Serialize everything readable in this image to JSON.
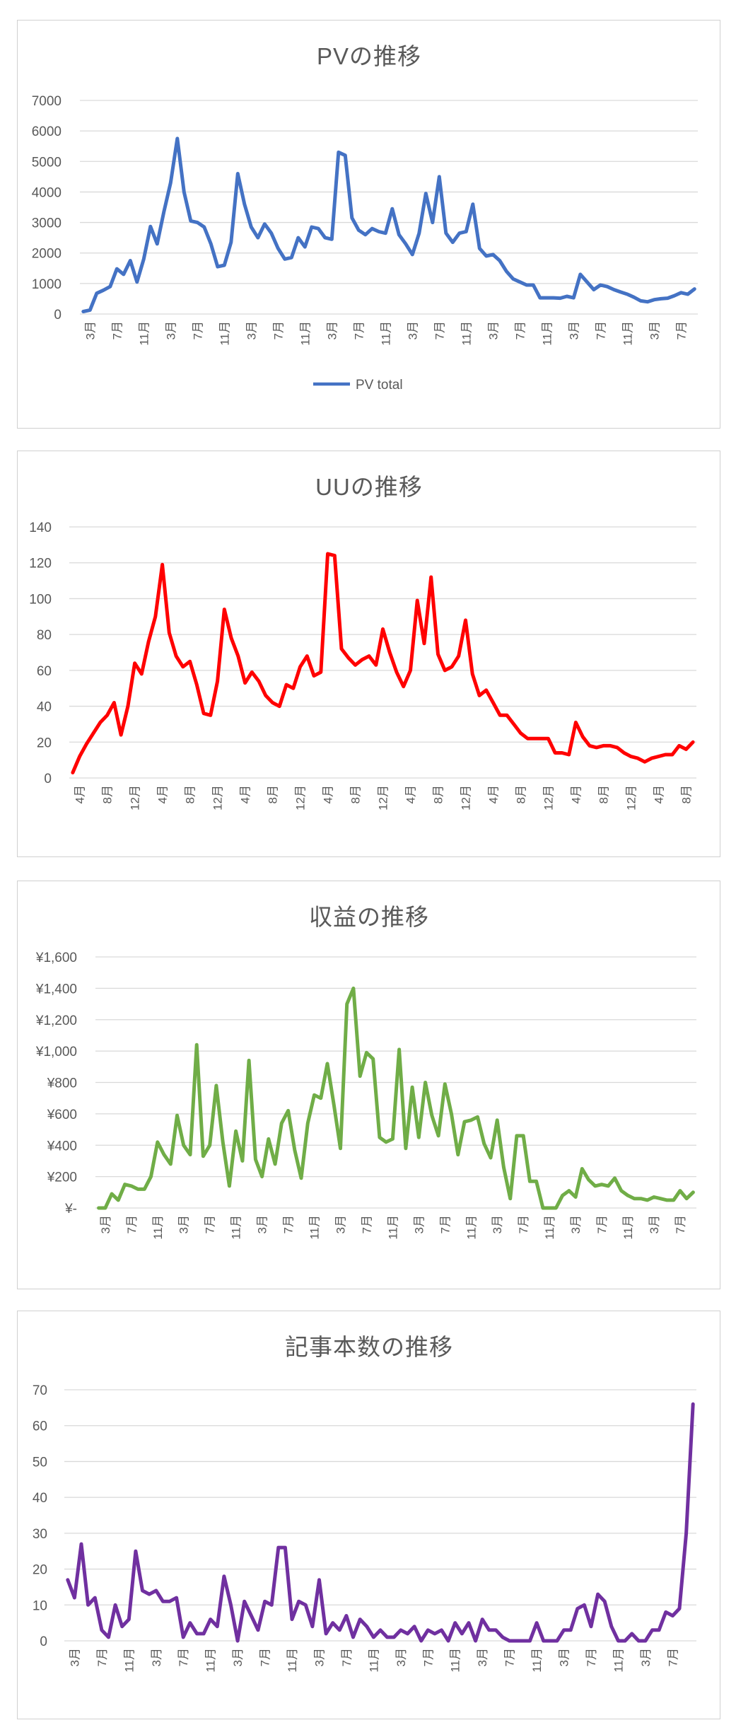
{
  "chart_data": [
    {
      "type": "line",
      "title": "PVの推移",
      "xlabel": "",
      "ylabel": "",
      "ylim": [
        0,
        7000
      ],
      "yticks": [
        "0",
        "1000",
        "2000",
        "3000",
        "4000",
        "5000",
        "6000",
        "7000"
      ],
      "legend": {
        "position": "bottom",
        "label": "PV total"
      },
      "color": "#4472C4",
      "xticks": [
        {
          "i": 1,
          "label": "3月"
        },
        {
          "i": 5,
          "label": "7月"
        },
        {
          "i": 9,
          "label": "11月"
        },
        {
          "i": 13,
          "label": "3月"
        },
        {
          "i": 17,
          "label": "7月"
        },
        {
          "i": 21,
          "label": "11月"
        },
        {
          "i": 25,
          "label": "3月"
        },
        {
          "i": 29,
          "label": "7月"
        },
        {
          "i": 33,
          "label": "11月"
        },
        {
          "i": 37,
          "label": "3月"
        },
        {
          "i": 41,
          "label": "7月"
        },
        {
          "i": 45,
          "label": "11月"
        },
        {
          "i": 49,
          "label": "3月"
        },
        {
          "i": 53,
          "label": "7月"
        },
        {
          "i": 57,
          "label": "11月"
        },
        {
          "i": 61,
          "label": "3月"
        },
        {
          "i": 65,
          "label": "7月"
        },
        {
          "i": 69,
          "label": "11月"
        },
        {
          "i": 73,
          "label": "3月"
        },
        {
          "i": 77,
          "label": "7月"
        },
        {
          "i": 81,
          "label": "11月"
        },
        {
          "i": 85,
          "label": "3月"
        },
        {
          "i": 89,
          "label": "7月"
        }
      ],
      "values": [
        80,
        130,
        680,
        780,
        900,
        1480,
        1300,
        1750,
        1050,
        1800,
        2870,
        2300,
        3350,
        4300,
        5750,
        4000,
        3050,
        3000,
        2850,
        2300,
        1550,
        1600,
        2350,
        4600,
        3600,
        2850,
        2500,
        2950,
        2650,
        2150,
        1800,
        1850,
        2500,
        2200,
        2850,
        2800,
        2500,
        2450,
        5300,
        5200,
        3150,
        2750,
        2600,
        2800,
        2700,
        2650,
        3450,
        2600,
        2300,
        1950,
        2650,
        3950,
        3000,
        4500,
        2650,
        2350,
        2650,
        2700,
        3600,
        2150,
        1900,
        1950,
        1750,
        1400,
        1150,
        1050,
        950,
        950,
        530,
        530,
        530,
        520,
        580,
        530,
        1300,
        1050,
        800,
        950,
        900,
        800,
        720,
        650,
        550,
        430,
        400,
        470,
        500,
        520,
        600,
        700,
        650,
        820
      ]
    },
    {
      "type": "line",
      "title": "UUの推移",
      "xlabel": "",
      "ylabel": "",
      "ylim": [
        0,
        140
      ],
      "yticks": [
        "0",
        "20",
        "40",
        "60",
        "80",
        "100",
        "120",
        "140"
      ],
      "color": "#FF0000",
      "xticks": [
        {
          "i": 1,
          "label": "4月"
        },
        {
          "i": 5,
          "label": "8月"
        },
        {
          "i": 9,
          "label": "12月"
        },
        {
          "i": 13,
          "label": "4月"
        },
        {
          "i": 17,
          "label": "8月"
        },
        {
          "i": 21,
          "label": "12月"
        },
        {
          "i": 25,
          "label": "4月"
        },
        {
          "i": 29,
          "label": "8月"
        },
        {
          "i": 33,
          "label": "12月"
        },
        {
          "i": 37,
          "label": "4月"
        },
        {
          "i": 41,
          "label": "8月"
        },
        {
          "i": 45,
          "label": "12月"
        },
        {
          "i": 49,
          "label": "4月"
        },
        {
          "i": 53,
          "label": "8月"
        },
        {
          "i": 57,
          "label": "12月"
        },
        {
          "i": 61,
          "label": "4月"
        },
        {
          "i": 65,
          "label": "8月"
        },
        {
          "i": 69,
          "label": "12月"
        },
        {
          "i": 73,
          "label": "4月"
        },
        {
          "i": 77,
          "label": "8月"
        },
        {
          "i": 81,
          "label": "12月"
        },
        {
          "i": 85,
          "label": "4月"
        },
        {
          "i": 89,
          "label": "8月"
        }
      ],
      "values": [
        3,
        12,
        19,
        25,
        31,
        35,
        42,
        24,
        40,
        64,
        58,
        76,
        90,
        119,
        81,
        68,
        62,
        65,
        52,
        36,
        35,
        54,
        94,
        78,
        68,
        53,
        59,
        54,
        46,
        42,
        40,
        52,
        50,
        62,
        68,
        57,
        59,
        125,
        124,
        72,
        67,
        63,
        66,
        68,
        63,
        83,
        70,
        59,
        51,
        60,
        99,
        75,
        112,
        69,
        60,
        62,
        68,
        88,
        58,
        46,
        49,
        42,
        35,
        35,
        30,
        25,
        22,
        22,
        22,
        22,
        14,
        14,
        13,
        31,
        23,
        18,
        17,
        18,
        18,
        17,
        14,
        12,
        11,
        9,
        11,
        12,
        13,
        13,
        18,
        16,
        20
      ]
    },
    {
      "type": "line",
      "title": "収益の推移",
      "xlabel": "",
      "ylabel": "",
      "ylim": [
        0,
        1600
      ],
      "yticks": [
        "¥-",
        "¥200",
        "¥400",
        "¥600",
        "¥800",
        "¥1,000",
        "¥1,200",
        "¥1,400",
        "¥1,600"
      ],
      "color": "#70AD47",
      "xticks": [
        {
          "i": 1,
          "label": "3月"
        },
        {
          "i": 5,
          "label": "7月"
        },
        {
          "i": 9,
          "label": "11月"
        },
        {
          "i": 13,
          "label": "3月"
        },
        {
          "i": 17,
          "label": "7月"
        },
        {
          "i": 21,
          "label": "11月"
        },
        {
          "i": 25,
          "label": "3月"
        },
        {
          "i": 29,
          "label": "7月"
        },
        {
          "i": 33,
          "label": "11月"
        },
        {
          "i": 37,
          "label": "3月"
        },
        {
          "i": 41,
          "label": "7月"
        },
        {
          "i": 45,
          "label": "11月"
        },
        {
          "i": 49,
          "label": "3月"
        },
        {
          "i": 53,
          "label": "7月"
        },
        {
          "i": 57,
          "label": "11月"
        },
        {
          "i": 61,
          "label": "3月"
        },
        {
          "i": 65,
          "label": "7月"
        },
        {
          "i": 69,
          "label": "11月"
        },
        {
          "i": 73,
          "label": "3月"
        },
        {
          "i": 77,
          "label": "7月"
        },
        {
          "i": 81,
          "label": "11月"
        },
        {
          "i": 85,
          "label": "3月"
        },
        {
          "i": 89,
          "label": "7月"
        }
      ],
      "values": [
        0,
        0,
        90,
        50,
        150,
        140,
        120,
        120,
        200,
        420,
        340,
        280,
        590,
        400,
        340,
        1040,
        330,
        400,
        780,
        420,
        140,
        490,
        300,
        940,
        310,
        200,
        440,
        280,
        540,
        620,
        370,
        190,
        540,
        720,
        700,
        920,
        660,
        380,
        1300,
        1400,
        840,
        990,
        950,
        450,
        420,
        440,
        1010,
        380,
        770,
        450,
        800,
        590,
        460,
        790,
        600,
        340,
        550,
        560,
        580,
        410,
        320,
        560,
        260,
        60,
        460,
        460,
        170,
        170,
        0,
        0,
        0,
        80,
        110,
        70,
        250,
        180,
        140,
        150,
        140,
        190,
        110,
        80,
        60,
        60,
        50,
        70,
        60,
        50,
        50,
        110,
        60,
        100
      ]
    },
    {
      "type": "line",
      "title": "記事本数の推移",
      "xlabel": "",
      "ylabel": "",
      "ylim": [
        0,
        70
      ],
      "yticks": [
        "0",
        "10",
        "20",
        "30",
        "40",
        "50",
        "60",
        "70"
      ],
      "color": "#7030A0",
      "xticks": [
        {
          "i": 1,
          "label": "3月"
        },
        {
          "i": 5,
          "label": "7月"
        },
        {
          "i": 9,
          "label": "11月"
        },
        {
          "i": 13,
          "label": "3月"
        },
        {
          "i": 17,
          "label": "7月"
        },
        {
          "i": 21,
          "label": "11月"
        },
        {
          "i": 25,
          "label": "3月"
        },
        {
          "i": 29,
          "label": "7月"
        },
        {
          "i": 33,
          "label": "11月"
        },
        {
          "i": 37,
          "label": "3月"
        },
        {
          "i": 41,
          "label": "7月"
        },
        {
          "i": 45,
          "label": "11月"
        },
        {
          "i": 49,
          "label": "3月"
        },
        {
          "i": 53,
          "label": "7月"
        },
        {
          "i": 57,
          "label": "11月"
        },
        {
          "i": 61,
          "label": "3月"
        },
        {
          "i": 65,
          "label": "7月"
        },
        {
          "i": 69,
          "label": "11月"
        },
        {
          "i": 73,
          "label": "3月"
        },
        {
          "i": 77,
          "label": "7月"
        },
        {
          "i": 81,
          "label": "11月"
        },
        {
          "i": 85,
          "label": "3月"
        },
        {
          "i": 89,
          "label": "7月"
        }
      ],
      "values": [
        17,
        12,
        27,
        10,
        12,
        3,
        1,
        10,
        4,
        6,
        25,
        14,
        13,
        14,
        11,
        11,
        12,
        1,
        5,
        2,
        2,
        6,
        4,
        18,
        10,
        0,
        11,
        7,
        3,
        11,
        10,
        26,
        26,
        6,
        11,
        10,
        4,
        17,
        2,
        5,
        3,
        7,
        1,
        6,
        4,
        1,
        3,
        1,
        1,
        3,
        2,
        4,
        0,
        3,
        2,
        3,
        0,
        5,
        2,
        5,
        0,
        6,
        3,
        3,
        1,
        0,
        0,
        0,
        0,
        5,
        0,
        0,
        0,
        3,
        3,
        9,
        10,
        4,
        13,
        11,
        4,
        0,
        0,
        2,
        0,
        0,
        3,
        3,
        8,
        7,
        9,
        30,
        66
      ]
    }
  ]
}
